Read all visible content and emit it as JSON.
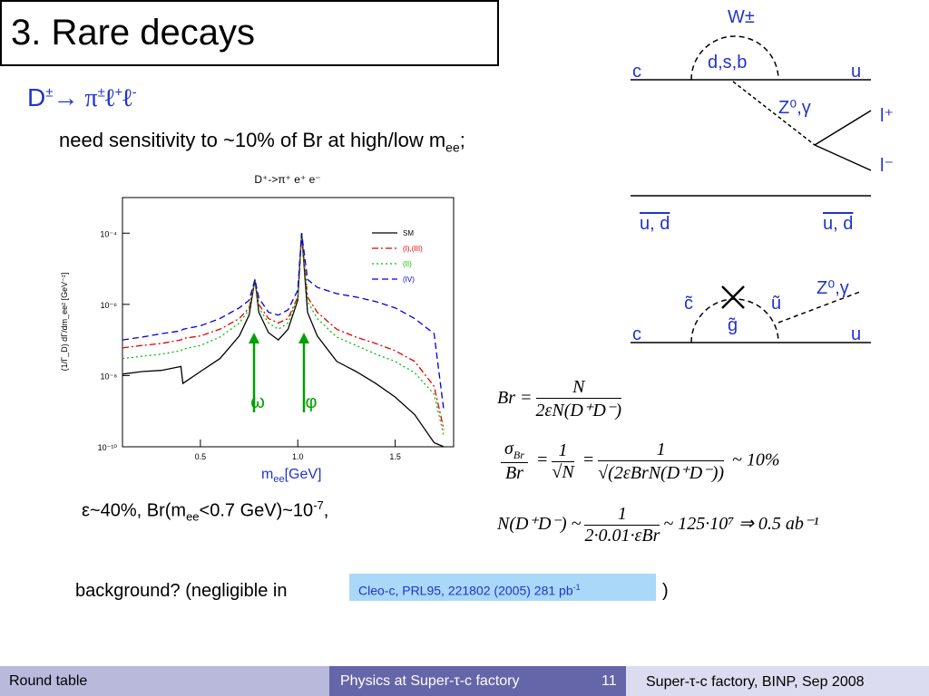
{
  "title": "3. Rare decays",
  "decay": {
    "parts": [
      "D",
      "±",
      "→ π",
      "±",
      "ℓ",
      "+",
      "ℓ",
      "-"
    ]
  },
  "sensitivity": {
    "text": "need sensitivity to ~10% of Br at high/low m",
    "sub": "ee",
    "end": ";"
  },
  "plot_xlabel": {
    "parts": [
      "m",
      "ee",
      "[GeV]"
    ]
  },
  "efficiency": {
    "parts": [
      "ε~40%, Br(m",
      "ee",
      "<0.7 GeV)~10",
      "-7",
      ","
    ]
  },
  "background": {
    "text": "background? (negligible in",
    "reference": "Cleo-c, PRL95, 221802 (2005) 281 pb",
    "reference_sup": "-1",
    "end": ")"
  },
  "diagram1": {
    "boson": "W±",
    "loop": "d,s,b",
    "quark_in": "c",
    "quark_out": "u",
    "neutral": "Z⁰,γ",
    "lepton_plus": "l⁺",
    "lepton_minus": "l⁻",
    "spectator_in": "u, d",
    "spectator_out": "u, d"
  },
  "diagram2": {
    "squark_in": "c̃",
    "squark_out": "ũ",
    "gluino": "g̃",
    "neutral": "Z⁰,γ",
    "quark_in": "c",
    "quark_out": "u"
  },
  "formulas": {
    "f1": {
      "lhs": "Br =",
      "num": "N",
      "den": "2εN(D⁺D⁻)"
    },
    "f2": {
      "sigma": "σ",
      "sigma_sub": "Br",
      "lhs_den": "Br",
      "eq1": "=",
      "num1": "1",
      "den1": "√N",
      "eq2": "=",
      "num2": "1",
      "den2": "√(2εBrN(D⁺D⁻))",
      "tail": "~ 10%"
    },
    "f3": {
      "lhs": "N(D⁺D⁻) ~",
      "num": "1",
      "den": "2·0.01·εBr",
      "tail": "~ 125·10⁷ ⇒ 0.5 ab⁻¹"
    }
  },
  "footer": {
    "left": "Round table",
    "center": "Physics at Super-τ-c factory",
    "page": "11",
    "right": "Super-τ-c factory, BINP, Sep 2008"
  },
  "chart_data": {
    "type": "line",
    "title": "D⁺->π⁺  e⁺  e⁻",
    "y_label": "(1/Γ_D) dΓ/dm_ee² [GeV⁻²]",
    "log_y": true,
    "legend": "upper right",
    "annotations": [
      "ω",
      "φ"
    ],
    "x": [
      0.1,
      0.2,
      0.3,
      0.4,
      0.41,
      0.5,
      0.6,
      0.7,
      0.75,
      0.78,
      0.8,
      0.85,
      0.9,
      0.95,
      1.0,
      1.02,
      1.05,
      1.1,
      1.2,
      1.3,
      1.4,
      1.5,
      1.6,
      1.7,
      1.75
    ],
    "xlim": [
      0.1,
      1.8
    ],
    "xticks": [
      0.5,
      {
        "value": 1,
        "label": "1.0"
      },
      1.5
    ],
    "ylim": [
      1e-10,
      0.001
    ],
    "yticks": [
      {
        "value": 1e-10,
        "label": "10⁻¹⁰"
      },
      {
        "value": 1e-08,
        "label": "10⁻⁸"
      },
      {
        "value": 1e-06,
        "label": "10⁻⁶"
      },
      {
        "value": 0.0001,
        "label": "10⁻⁴"
      }
    ],
    "series": [
      {
        "name": "SM",
        "color": "#000000",
        "line_style": "solid",
        "values": [
          1.1e-08,
          1.3e-08,
          1.4e-08,
          1.8e-08,
          6e-09,
          1.3e-08,
          3e-08,
          1.3e-07,
          5e-07,
          5e-06,
          6e-07,
          1.6e-07,
          1e-07,
          2e-07,
          1.3e-06,
          0.0001,
          6e-07,
          1.3e-07,
          2.5e-08,
          1.3e-08,
          6e-09,
          2.5e-09,
          8e-10,
          1.3e-10,
          1e-10
        ]
      },
      {
        "name": "(I),(III)",
        "color": "#e00000",
        "line_style": "dashdot",
        "values": [
          6e-08,
          7e-08,
          8e-08,
          1e-07,
          1.1e-07,
          1.3e-07,
          2e-07,
          4e-07,
          8e-07,
          5e-06,
          1e-06,
          4e-07,
          3e-07,
          4e-07,
          1.6e-06,
          0.0001,
          1.6e-06,
          6e-07,
          2e-07,
          1.2e-07,
          8e-08,
          5e-08,
          2.5e-08,
          5e-09,
          3e-10
        ]
      },
      {
        "name": "(II)",
        "color": "#00c000",
        "line_style": "dotted",
        "values": [
          3e-08,
          3.5e-08,
          4e-08,
          5e-08,
          5.5e-08,
          7e-08,
          1.2e-07,
          3e-07,
          7e-07,
          5e-06,
          8e-07,
          3e-07,
          2e-07,
          3e-07,
          1.5e-06,
          0.0001,
          1.2e-06,
          4e-07,
          1.2e-07,
          7e-08,
          4e-08,
          2.5e-08,
          1.2e-08,
          3e-09,
          2e-10
        ]
      },
      {
        "name": "(IV)",
        "color": "#0000e0",
        "line_style": "dashed",
        "values": [
          1e-07,
          1.2e-07,
          1.5e-07,
          1.8e-07,
          2e-07,
          2.5e-07,
          4e-07,
          8e-07,
          1.3e-06,
          5e-06,
          1.5e-06,
          6e-07,
          5e-07,
          7e-07,
          2.5e-06,
          0.0001,
          5e-06,
          3e-06,
          2e-06,
          1.6e-06,
          1.2e-06,
          8e-07,
          4e-07,
          1.5e-07,
          1e-09
        ]
      }
    ]
  }
}
